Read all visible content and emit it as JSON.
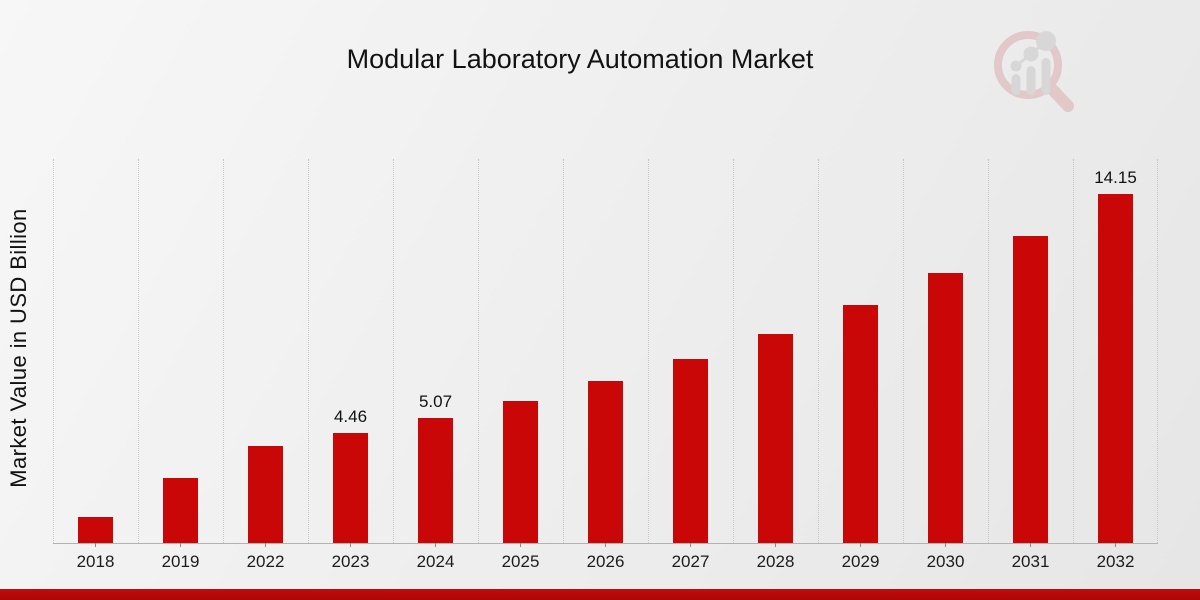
{
  "header": {
    "title": "Modular Laboratory Automation Market"
  },
  "y_axis": {
    "label": "Market Value in USD Billion"
  },
  "chart_data": {
    "type": "bar",
    "title": "Modular Laboratory Automation Market",
    "xlabel": "",
    "ylabel": "Market Value in USD Billion",
    "categories": [
      "2018",
      "2019",
      "2022",
      "2023",
      "2024",
      "2025",
      "2026",
      "2027",
      "2028",
      "2029",
      "2030",
      "2031",
      "2032"
    ],
    "values": [
      1.05,
      2.65,
      3.92,
      4.46,
      5.07,
      5.76,
      6.55,
      7.45,
      8.47,
      9.63,
      10.95,
      12.45,
      14.15
    ],
    "data_labels": {
      "2023": "4.46",
      "2024": "5.07",
      "2032": "14.15"
    },
    "ylim": [
      0,
      15.55
    ],
    "bar_color": "#c90707",
    "grid": "vertical-dotted-category-boundaries",
    "legend": "none",
    "y_ticks_shown": false
  },
  "footer": {
    "accent_color": "#b30808"
  },
  "branding": {
    "logo_icon": "bar-chart-magnifier-logo",
    "ring_color": "#d49090",
    "bars_color": "#b7b7bb"
  }
}
